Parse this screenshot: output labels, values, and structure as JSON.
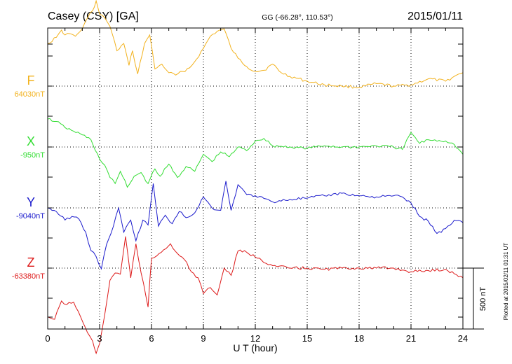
{
  "header": {
    "station": "Casey (CSY)  [GA]",
    "coords": "GG (-66.28°, 110.53°)",
    "date": "2015/01/11"
  },
  "footer_note": "Plotted at 2015/02/11 01:31  UT",
  "chart_data": {
    "type": "line",
    "xlabel": "U T (hour)",
    "xlim": [
      0,
      24
    ],
    "xticks": [
      0,
      3,
      6,
      9,
      12,
      15,
      18,
      21,
      24
    ],
    "scale_bar": {
      "label": "500 nT",
      "value_nT": 500
    },
    "series": [
      {
        "name": "F",
        "baseline_label": "64030nT",
        "color": "#f2b21e",
        "x": [
          0,
          0.5,
          0.8,
          1,
          1.3,
          1.6,
          2,
          2.3,
          2.6,
          2.8,
          3,
          3.3,
          3.6,
          4,
          4.4,
          4.7,
          4.9,
          5.2,
          5.6,
          5.9,
          6.2,
          6.6,
          7,
          7.4,
          7.8,
          8.2,
          8.6,
          9,
          9.4,
          9.8,
          10.2,
          10.6,
          11,
          11.5,
          12,
          12.5,
          13,
          13.5,
          14,
          15,
          16,
          17,
          18,
          19,
          20,
          21,
          22,
          23,
          23.5,
          24
        ],
        "y": [
          350,
          400,
          460,
          420,
          430,
          410,
          470,
          560,
          620,
          700,
          590,
          560,
          490,
          290,
          350,
          170,
          290,
          100,
          350,
          420,
          140,
          180,
          110,
          90,
          120,
          150,
          220,
          310,
          410,
          450,
          470,
          310,
          230,
          160,
          120,
          130,
          180,
          110,
          80,
          40,
          10,
          0,
          -10,
          20,
          0,
          10,
          60,
          40,
          80,
          110
        ]
      },
      {
        "name": "X",
        "baseline_label": "-950nT",
        "color": "#33dd33",
        "x": [
          0,
          0.5,
          1,
          1.5,
          2,
          2.5,
          3,
          3.3,
          3.6,
          3.9,
          4.2,
          4.6,
          5,
          5.4,
          5.8,
          6.2,
          6.5,
          7,
          7.5,
          8,
          8.5,
          9,
          9.5,
          10,
          10.5,
          11,
          11.5,
          12,
          12.5,
          13,
          14,
          15,
          16,
          17,
          18,
          19,
          20,
          20.5,
          21,
          21.5,
          22,
          23,
          23.5,
          24
        ],
        "y": [
          230,
          210,
          160,
          130,
          100,
          60,
          -100,
          -150,
          -250,
          -300,
          -200,
          -330,
          -240,
          -210,
          -300,
          -180,
          -240,
          -140,
          -250,
          -160,
          -200,
          -60,
          -120,
          -40,
          -80,
          0,
          -30,
          50,
          70,
          10,
          0,
          -10,
          10,
          0,
          0,
          10,
          0,
          -20,
          120,
          30,
          60,
          50,
          20,
          -60
        ]
      },
      {
        "name": "Y",
        "baseline_label": "-9040nT",
        "color": "#1a1acc",
        "x": [
          0,
          0.5,
          1,
          1.4,
          1.8,
          2.2,
          2.5,
          2.8,
          3.1,
          3.4,
          3.8,
          4.1,
          4.4,
          4.8,
          5.1,
          5.5,
          5.8,
          6.1,
          6.4,
          6.8,
          7.2,
          7.6,
          8,
          8.5,
          9,
          9.5,
          10,
          10.3,
          10.6,
          11,
          11.5,
          12,
          13,
          14,
          15,
          16,
          17,
          18,
          19,
          20,
          20.5,
          21,
          21.5,
          22,
          22.5,
          23,
          23.5,
          24
        ],
        "y": [
          0,
          -30,
          -100,
          -70,
          -90,
          -200,
          -350,
          -400,
          -500,
          -300,
          -150,
          0,
          -200,
          -100,
          -270,
          -100,
          -140,
          200,
          -150,
          -60,
          -130,
          -30,
          -80,
          -40,
          90,
          0,
          -20,
          220,
          -20,
          190,
          110,
          100,
          50,
          70,
          80,
          100,
          120,
          100,
          90,
          100,
          90,
          40,
          -70,
          -110,
          -210,
          -170,
          -100,
          -120
        ]
      },
      {
        "name": "Z",
        "baseline_label": "-63380nT",
        "color": "#dd1a1a",
        "x": [
          0,
          0.4,
          0.8,
          1.1,
          1.5,
          1.9,
          2.3,
          2.6,
          2.8,
          3,
          3.3,
          3.6,
          3.9,
          4.2,
          4.5,
          4.8,
          5.1,
          5.4,
          5.8,
          6,
          6.3,
          6.7,
          7.1,
          7.5,
          7.9,
          8.3,
          8.7,
          9,
          9.4,
          9.8,
          10.2,
          10.6,
          11,
          11.5,
          12,
          13,
          14,
          15,
          16,
          17,
          18,
          19,
          20,
          21,
          22,
          23,
          24
        ],
        "y": [
          -400,
          -420,
          -270,
          -300,
          -280,
          -400,
          -530,
          -600,
          -700,
          -620,
          -380,
          -100,
          -40,
          -50,
          260,
          -80,
          200,
          -40,
          -320,
          80,
          100,
          150,
          200,
          120,
          70,
          -30,
          -80,
          -210,
          -160,
          -220,
          0,
          -60,
          140,
          130,
          90,
          20,
          0,
          0,
          -10,
          0,
          0,
          0,
          0,
          -30,
          -20,
          -10,
          -80
        ]
      }
    ]
  }
}
